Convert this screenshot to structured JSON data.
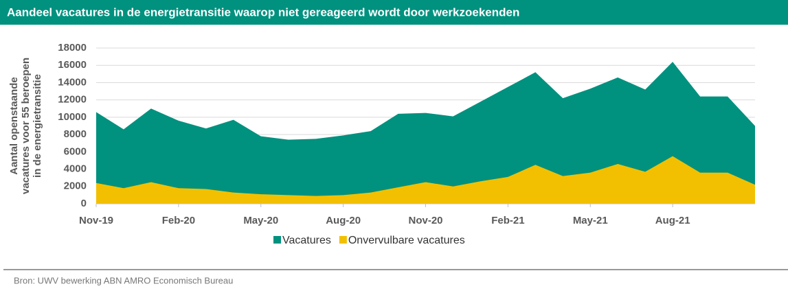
{
  "title": "Aandeel vacatures in de energietransitie waarop niet gereageerd wordt door werkzoekenden",
  "source": "Bron: UWV bewerking ABN AMRO Economisch Bureau",
  "chart_data": {
    "type": "area",
    "ylabel": [
      "Aantal openstaande",
      "vacatures voor 55 beroepen",
      "in de energietransitie"
    ],
    "categories": [
      "Nov-19",
      null,
      null,
      "Feb-20",
      null,
      null,
      "May-20",
      null,
      null,
      "Aug-20",
      null,
      null,
      "Nov-20",
      null,
      null,
      "Feb-21",
      null,
      null,
      "May-21",
      null,
      null,
      "Aug-21",
      null,
      null,
      null
    ],
    "series": [
      {
        "name": "Vacatures",
        "color": "#00917f",
        "values": [
          10600,
          8600,
          11000,
          9600,
          8700,
          9700,
          7800,
          7400,
          7500,
          7900,
          8400,
          10400,
          10500,
          10100,
          11800,
          13500,
          15200,
          12200,
          13300,
          14600,
          13200,
          16400,
          12400,
          12400,
          9000
        ]
      },
      {
        "name": "Onvervulbare vacatures",
        "color": "#f2c000",
        "values": [
          2400,
          1800,
          2500,
          1800,
          1700,
          1300,
          1100,
          1000,
          900,
          1000,
          1300,
          1900,
          2500,
          2000,
          2600,
          3100,
          4500,
          3200,
          3600,
          4600,
          3700,
          5500,
          3600,
          3600,
          2200
        ]
      }
    ],
    "ylim": [
      0,
      18000
    ],
    "yticks": [
      0,
      2000,
      4000,
      6000,
      8000,
      10000,
      12000,
      14000,
      16000,
      18000
    ],
    "grid": true
  }
}
